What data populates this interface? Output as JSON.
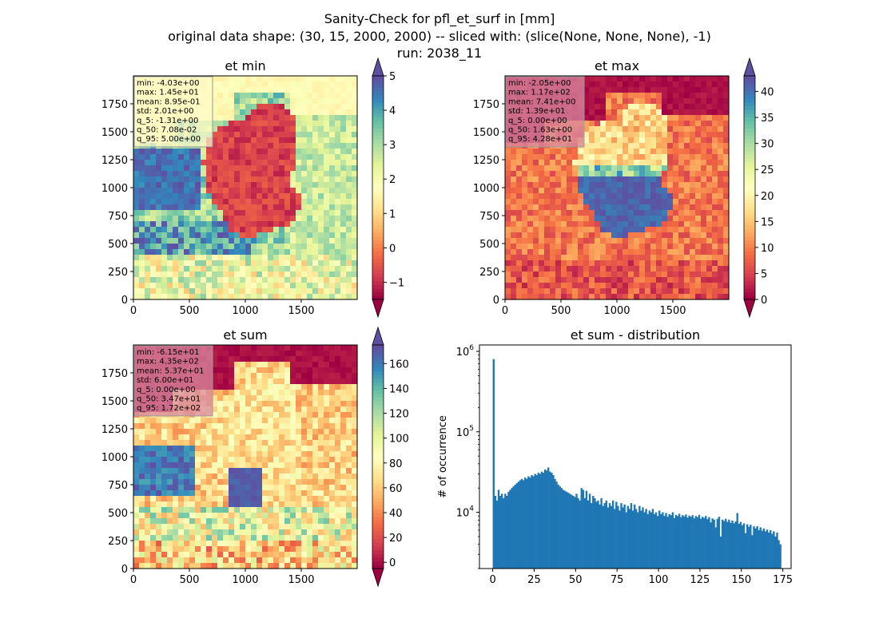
{
  "suptitle": {
    "line1": "Sanity-Check for pfl_et_surf in [mm]",
    "line2": "original data shape: (30, 15, 2000, 2000) -- sliced with: (slice(None, None, None), -1)",
    "line3": "run: 2038_11"
  },
  "chart_data": [
    {
      "type": "heatmap",
      "title": "et min",
      "xlim": [
        0,
        2000
      ],
      "ylim": [
        0,
        2000
      ],
      "xticks": [
        "0",
        "500",
        "1000",
        "1500"
      ],
      "yticks": [
        "0",
        "250",
        "500",
        "750",
        "1000",
        "1250",
        "1500",
        "1750"
      ],
      "colormap": "Spectral",
      "colorbar": {
        "min": -1.5,
        "max": 5.0,
        "ticks": [
          "−1",
          "0",
          "1",
          "2",
          "3",
          "4",
          "5"
        ],
        "extend": "both"
      },
      "stats": [
        "min: -4.03e+00",
        "max: 1.45e+01",
        "mean: 8.95e-01",
        "std: 2.01e+00",
        "q_5: -1.31e+00",
        "q_50: 7.08e-02",
        "q_95: 5.00e+00"
      ],
      "stats_box_color": "#fffac8"
    },
    {
      "type": "heatmap",
      "title": "et max",
      "xlim": [
        0,
        2000
      ],
      "ylim": [
        0,
        2000
      ],
      "xticks": [
        "0",
        "500",
        "1000",
        "1500"
      ],
      "yticks": [
        "0",
        "250",
        "500",
        "750",
        "1000",
        "1250",
        "1500",
        "1750"
      ],
      "colormap": "Spectral",
      "colorbar": {
        "min": 0,
        "max": 43,
        "ticks": [
          "0",
          "5",
          "10",
          "15",
          "20",
          "25",
          "30",
          "35",
          "40"
        ],
        "extend": "both"
      },
      "stats": [
        "min: -2.05e+00",
        "max: 1.17e+02",
        "mean: 7.41e+00",
        "std: 1.39e+01",
        "q_5: 0.00e+00",
        "q_50: 1.63e+00",
        "q_95: 4.28e+01"
      ],
      "stats_box_color": "#d88aa0"
    },
    {
      "type": "heatmap",
      "title": "et sum",
      "xlim": [
        0,
        2000
      ],
      "ylim": [
        0,
        2000
      ],
      "xticks": [
        "0",
        "500",
        "1000",
        "1500"
      ],
      "yticks": [
        "0",
        "250",
        "500",
        "750",
        "1000",
        "1250",
        "1500",
        "1750"
      ],
      "colormap": "Spectral",
      "colorbar": {
        "min": -5,
        "max": 175,
        "ticks": [
          "0",
          "20",
          "40",
          "60",
          "80",
          "100",
          "120",
          "140",
          "160"
        ],
        "extend": "both"
      },
      "stats": [
        "min: -6.15e+01",
        "max: 4.35e+02",
        "mean: 5.37e+01",
        "std: 6.00e+01",
        "q_5: 0.00e+00",
        "q_50: 3.47e+01",
        "q_95: 1.72e+02"
      ],
      "stats_box_color": "#d88aa0"
    },
    {
      "type": "bar",
      "title": "et sum - distribution",
      "ylabel": "# of occurrence",
      "xlabel": "",
      "yscale": "log",
      "xlim": [
        -8,
        180
      ],
      "ylim": [
        2000,
        1200000
      ],
      "xticks": [
        0,
        25,
        50,
        75,
        100,
        125,
        150,
        175
      ],
      "yticks": [
        {
          "value": 10000,
          "base": "10",
          "exp": "4"
        },
        {
          "value": 100000,
          "base": "10",
          "exp": "5"
        },
        {
          "value": 1000000,
          "base": "10",
          "exp": "6"
        }
      ],
      "bar_color": "#1f77b4",
      "bin_width": 1,
      "bin_start": 0,
      "values": [
        800000,
        16000,
        14000,
        19000,
        16000,
        17000,
        15000,
        17000,
        16000,
        18000,
        19000,
        20000,
        21000,
        22000,
        23000,
        24000,
        25000,
        26000,
        25000,
        27000,
        26000,
        28000,
        27000,
        29000,
        28000,
        30000,
        29000,
        31000,
        30000,
        32000,
        31000,
        34000,
        33000,
        36000,
        32000,
        31000,
        29000,
        26000,
        24000,
        22000,
        21000,
        20000,
        19000,
        18500,
        18000,
        17500,
        17000,
        16500,
        16000,
        15500,
        17000,
        15000,
        14000,
        20000,
        19000,
        15000,
        18500,
        14000,
        17000,
        13000,
        16000,
        15000,
        13500,
        14000,
        12500,
        15000,
        12000,
        13000,
        14000,
        11500,
        13000,
        12000,
        14000,
        11000,
        13500,
        12000,
        10500,
        13000,
        11500,
        12500,
        10000,
        12000,
        11000,
        13000,
        10500,
        12500,
        11000,
        10000,
        12000,
        10500,
        11500,
        10000,
        11000,
        9500,
        10500,
        10000,
        11000,
        9500,
        10000,
        9000,
        10500,
        9500,
        10000,
        9000,
        9800,
        8800,
        9500,
        9200,
        10000,
        8500,
        9300,
        9000,
        9600,
        8700,
        9200,
        8900,
        9400,
        8600,
        9100,
        8800,
        9200,
        8400,
        9000,
        8700,
        9300,
        8300,
        8800,
        8500,
        9000,
        8200,
        8700,
        7500,
        8400,
        8100,
        6500,
        8300,
        8800,
        5000,
        8100,
        7800,
        8300,
        7600,
        8100,
        7400,
        7900,
        7300,
        7700,
        9800,
        7200,
        7600,
        6900,
        7300,
        5500,
        7100,
        6600,
        7000,
        5200,
        6700,
        6300,
        6700,
        6000,
        6500,
        5900,
        6300,
        5800,
        6100,
        5600,
        6000,
        5400,
        5800,
        5000,
        5600,
        4500,
        4000
      ]
    }
  ]
}
